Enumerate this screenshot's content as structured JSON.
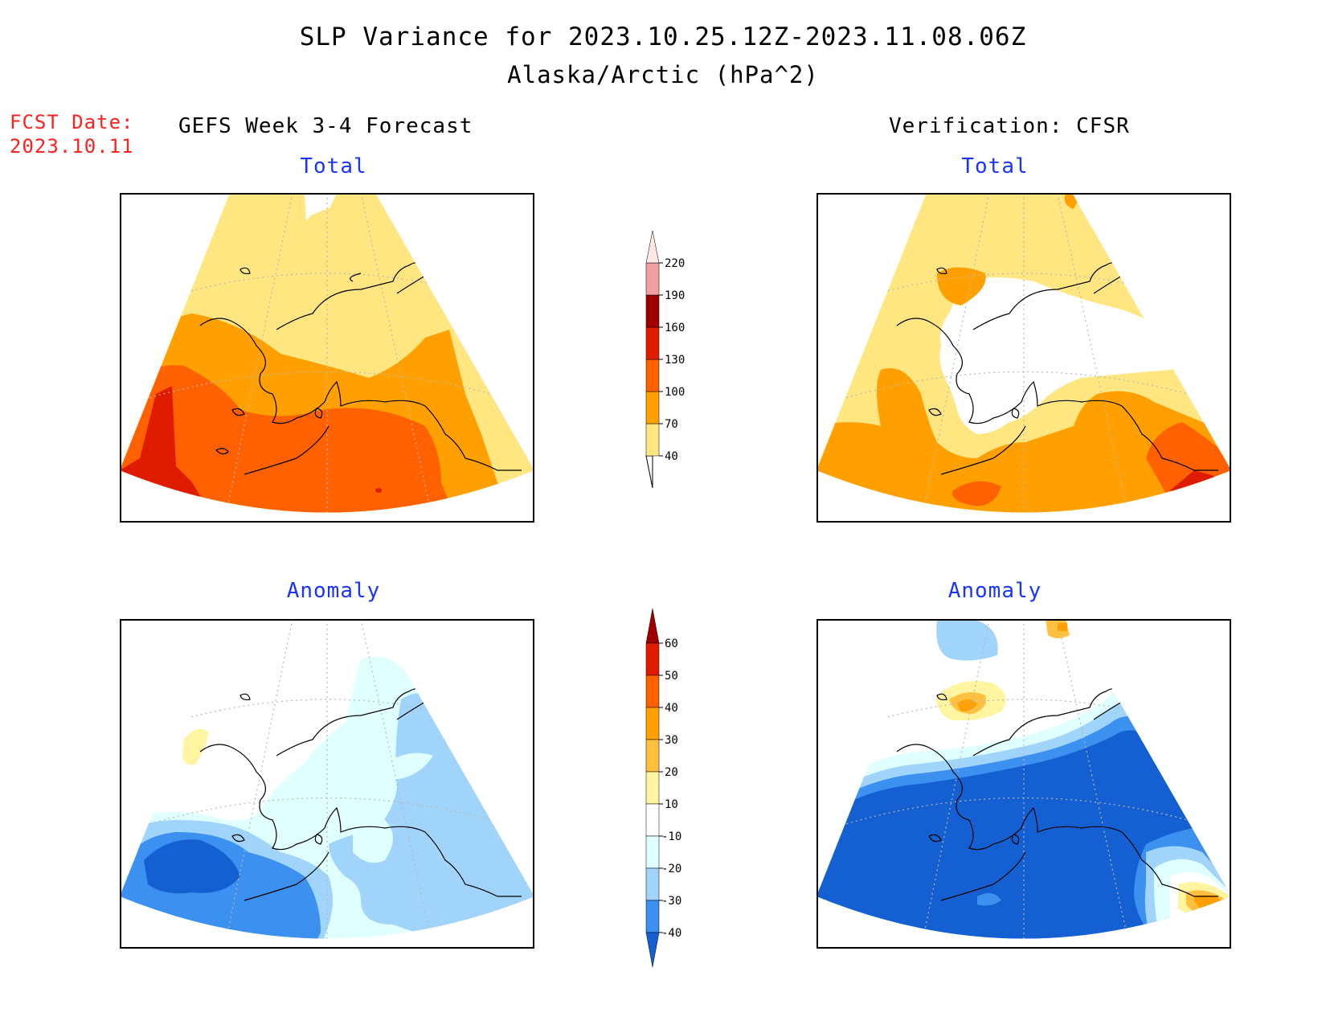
{
  "title": {
    "line1": "SLP Variance for 2023.10.25.12Z-2023.11.08.06Z",
    "line2": "Alaska/Arctic (hPa^2)"
  },
  "forecast_date": {
    "label": "FCST Date:",
    "value": "2023.10.11"
  },
  "left_column_title": "GEFS Week 3-4 Forecast",
  "right_column_title": "Verification: CFSR",
  "panels": {
    "top_left": "Total",
    "top_right": "Total",
    "bottom_left": "Anomaly",
    "bottom_right": "Anomaly"
  },
  "colorbar_total": {
    "levels": [
      "40",
      "70",
      "100",
      "130",
      "160",
      "190",
      "220"
    ],
    "colors": [
      "#ffe680",
      "#ffa000",
      "#ff6000",
      "#e01c00",
      "#a00000",
      "#f0a0a0",
      "#fce6e6"
    ]
  },
  "colorbar_anomaly": {
    "levels": [
      "60",
      "50",
      "40",
      "30",
      "20",
      "10",
      "-10",
      "-20",
      "-30",
      "-40"
    ],
    "colors": {
      "above_60": "#a00000",
      "50_60": "#e01c00",
      "40_50": "#ff6000",
      "30_40": "#ffa000",
      "20_30": "#ffc040",
      "10_20": "#fff4a0",
      "neutral": "#ffffff",
      "m20_m10": "#e0ffff",
      "m30_m20": "#a0d4fa",
      "m40_m30": "#3c90f0",
      "below_m40": "#1460d2"
    }
  },
  "map_colors": {
    "coastline": "#000000",
    "gridline": "#b8b8b8",
    "frame": "#000000"
  }
}
